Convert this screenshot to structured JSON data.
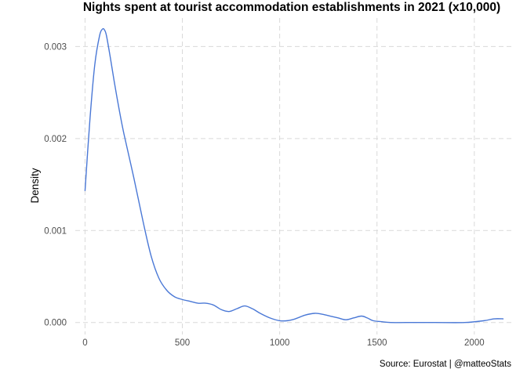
{
  "colors": {
    "line": "#4a78d6",
    "grid": "#d9d9d9",
    "background": "#ffffff"
  },
  "chart_data": {
    "type": "line",
    "title": "Nights spent at tourist accommodation establishments in 2021 (x10,000)",
    "xlabel": "",
    "ylabel": "Density",
    "caption": "Source: Eurostat | @matteoStats",
    "xlim": [
      -50,
      2190
    ],
    "ylim": [
      -0.00013,
      0.00331
    ],
    "xticks": [
      0,
      500,
      1000,
      1500,
      2000
    ],
    "xtick_labels": [
      "0",
      "500",
      "1000",
      "1500",
      "2000"
    ],
    "yticks": [
      0.0,
      0.001,
      0.002,
      0.003
    ],
    "ytick_labels": [
      "0.000",
      "0.001",
      "0.002",
      "0.003"
    ],
    "grid": true,
    "legend": "none",
    "series": [
      {
        "x": [
          0,
          25,
          50,
          75,
          90,
          100,
          110,
          130,
          150,
          175,
          200,
          250,
          300,
          340,
          380,
          420,
          460,
          500,
          540,
          580,
          620,
          660,
          700,
          740,
          780,
          820,
          860,
          900,
          950,
          1000,
          1040,
          1080,
          1130,
          1180,
          1220,
          1260,
          1300,
          1340,
          1380,
          1420,
          1450,
          1480,
          1520,
          1570,
          1650,
          1800,
          1950,
          2050,
          2100,
          2150
        ],
        "y": [
          0.00143,
          0.0022,
          0.0028,
          0.00312,
          0.00319,
          0.00318,
          0.00312,
          0.00288,
          0.00262,
          0.00232,
          0.00205,
          0.00158,
          0.00108,
          0.00072,
          0.00048,
          0.00035,
          0.00028,
          0.00025,
          0.00023,
          0.00021,
          0.00021,
          0.00019,
          0.00014,
          0.00012,
          0.00015,
          0.00018,
          0.00015,
          0.0001,
          5e-05,
          2e-05,
          2e-05,
          4e-05,
          8e-05,
          0.0001,
          9e-05,
          7e-05,
          5e-05,
          3e-05,
          5e-05,
          7e-05,
          5e-05,
          2e-05,
          1e-05,
          0.0,
          0.0,
          0.0,
          0.0,
          2e-05,
          4e-05,
          4e-05
        ]
      }
    ]
  }
}
